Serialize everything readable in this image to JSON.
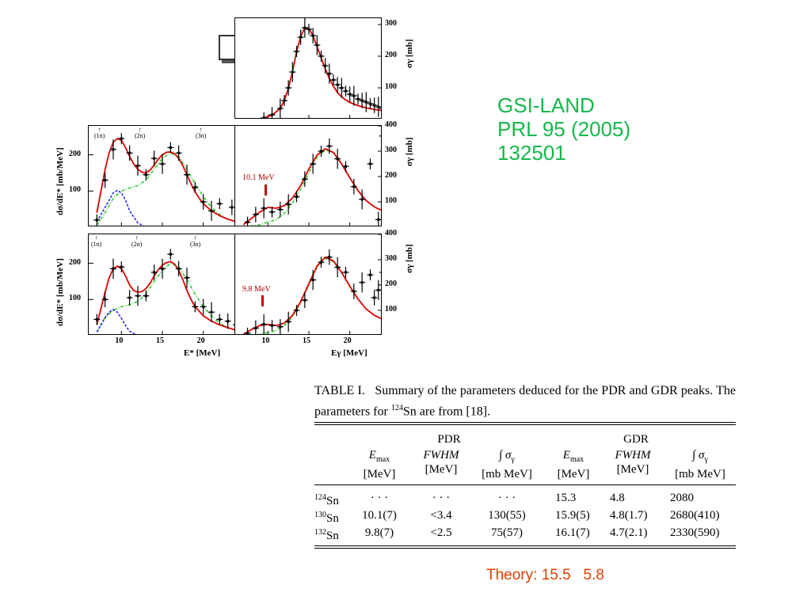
{
  "citation": {
    "line1": "GSI-LAND",
    "line2": "PRL 95 (2005)",
    "line3": "132501"
  },
  "theory": "Theory: 15.5   5.8",
  "figure": {
    "isotopes": [
      {
        "mass": "124",
        "symbol": "Sn",
        "color": "#0000d0"
      },
      {
        "mass": "130",
        "symbol": "Sn",
        "color": "#d000d0"
      },
      {
        "mass": "132",
        "symbol": "Sn",
        "color": "#d000d0"
      }
    ],
    "channels": [
      "(1n)",
      "(2n)",
      "(3n)"
    ],
    "annotations": {
      "sn130": "10.1 MeV",
      "sn132": "9.8 MeV"
    },
    "left_ylabel": "dσ/dE* [mb/MeV]",
    "right_ylabel": "σγ [mb]",
    "left_xlabel": "E* [MeV]",
    "right_xlabel": "Eγ [MeV]",
    "colors": {
      "fit": "#e00000",
      "gdr": "#33cc33",
      "pdr": "#2222ee",
      "data": "#000000",
      "annotation": "#c00000"
    }
  },
  "chart_data": [
    {
      "type": "scatter",
      "panel": "124Sn right",
      "xlabel": "Eγ [MeV]",
      "ylabel": "σγ [mb]",
      "xlim": [
        6,
        24
      ],
      "ylim": [
        0,
        320
      ],
      "yticks": [
        100,
        200,
        300
      ],
      "series": [
        {
          "name": "",
          "kind": "data",
          "x": [
            9.5,
            10.5,
            11.5,
            12.0,
            12.5,
            13.0,
            13.5,
            14.0,
            14.5,
            15.0,
            15.5,
            16.0,
            16.5,
            17.0,
            17.5,
            18.0,
            18.5,
            19.0,
            19.5,
            20.0,
            20.5,
            21.0,
            21.5,
            22.0,
            22.5,
            23.0,
            23.5,
            24.0
          ],
          "y": [
            5,
            15,
            35,
            60,
            100,
            150,
            215,
            260,
            290,
            285,
            265,
            235,
            200,
            170,
            145,
            125,
            110,
            100,
            90,
            80,
            75,
            65,
            60,
            55,
            50,
            45,
            40,
            35
          ]
        },
        {
          "name": "",
          "kind": "fit",
          "x": [
            9.5,
            10.5,
            11.5,
            12.0,
            12.5,
            13.0,
            13.5,
            14.0,
            14.5,
            15.0,
            15.5,
            16.0,
            16.5,
            17.0,
            17.5,
            18.0,
            18.5,
            19.0,
            19.5,
            20.0,
            21.0,
            22.0,
            23.0,
            24.0
          ],
          "y": [
            5,
            14,
            35,
            60,
            100,
            150,
            215,
            262,
            290,
            287,
            265,
            230,
            195,
            160,
            130,
            105,
            85,
            72,
            62,
            54,
            44,
            37,
            32,
            28
          ]
        }
      ]
    },
    {
      "type": "scatter",
      "panel": "130Sn left",
      "xlabel": "E* [MeV]",
      "ylabel": "dσ/dE* [mb/MeV]",
      "xlim": [
        6,
        24
      ],
      "ylim": [
        0,
        280
      ],
      "yticks": [
        100,
        200
      ],
      "series": [
        {
          "name": "",
          "kind": "data",
          "x": [
            7.0,
            8.0,
            9.0,
            10.0,
            11.0,
            12.0,
            13.0,
            14.0,
            15.0,
            16.0,
            17.0,
            18.0,
            19.0,
            20.0,
            21.0,
            22.0,
            23.5
          ],
          "y": [
            20,
            130,
            215,
            245,
            205,
            170,
            145,
            190,
            175,
            220,
            205,
            145,
            110,
            70,
            45,
            65,
            55
          ]
        },
        {
          "name": "",
          "kind": "fit",
          "x": [
            7.0,
            7.5,
            8.0,
            8.5,
            9.0,
            9.5,
            10.0,
            10.5,
            11.0,
            11.5,
            12.0,
            12.5,
            13.0,
            13.5,
            14.0,
            14.5,
            15.0,
            15.5,
            16.0,
            16.5,
            17.0,
            17.5,
            18.0,
            18.5,
            19.0,
            19.5,
            20.0,
            21.0,
            22.0,
            23.0,
            24.0
          ],
          "y": [
            40,
            100,
            160,
            205,
            235,
            245,
            240,
            220,
            195,
            175,
            160,
            152,
            150,
            158,
            172,
            188,
            200,
            207,
            208,
            203,
            190,
            170,
            145,
            120,
            98,
            80,
            65,
            45,
            32,
            22,
            15
          ]
        },
        {
          "name": "",
          "kind": "gdr",
          "x": [
            7.0,
            8.0,
            9.0,
            10.0,
            11.0,
            12.0,
            13.0,
            14.0,
            15.0,
            16.0,
            17.0,
            18.0,
            19.0,
            20.0,
            21.0,
            22.0,
            23.0,
            24.0
          ],
          "y": [
            5,
            40,
            80,
            100,
            108,
            115,
            130,
            160,
            190,
            205,
            195,
            160,
            120,
            85,
            55,
            35,
            22,
            15
          ]
        },
        {
          "name": "",
          "kind": "pdr",
          "x": [
            7.0,
            8.0,
            9.0,
            9.5,
            10.0,
            10.5,
            11.0,
            12.0,
            13.0
          ],
          "y": [
            15,
            55,
            95,
            102,
            95,
            75,
            45,
            12,
            0
          ]
        }
      ]
    },
    {
      "type": "scatter",
      "panel": "130Sn right",
      "xlabel": "Eγ [MeV]",
      "ylabel": "σγ [mb]",
      "xlim": [
        6,
        24
      ],
      "ylim": [
        0,
        400
      ],
      "yticks": [
        100,
        200,
        300,
        400
      ],
      "annotation": {
        "label": "10.1 MeV",
        "x": 10.1
      },
      "series": [
        {
          "name": "",
          "kind": "data",
          "x": [
            7.5,
            8.5,
            9.5,
            10.5,
            11.5,
            12.5,
            13.5,
            14.5,
            15.5,
            16.5,
            17.5,
            18.5,
            19.5,
            20.5,
            21.5,
            22.5,
            23.5,
            24.0
          ],
          "y": [
            20,
            50,
            75,
            60,
            70,
            90,
            120,
            190,
            250,
            300,
            320,
            270,
            240,
            160,
            110,
            250,
            30,
            360
          ]
        },
        {
          "name": "",
          "kind": "fit",
          "x": [
            7.0,
            8.0,
            9.0,
            10.0,
            11.0,
            12.0,
            13.0,
            14.0,
            15.0,
            16.0,
            17.0,
            18.0,
            19.0,
            20.0,
            21.0,
            22.0,
            23.0,
            24.0
          ],
          "y": [
            10,
            35,
            60,
            78,
            75,
            85,
            115,
            165,
            230,
            285,
            310,
            295,
            250,
            195,
            145,
            105,
            80,
            65
          ]
        },
        {
          "name": "",
          "kind": "gdr",
          "x": [
            7.0,
            9.0,
            11.0,
            12.0,
            13.0,
            14.0,
            15.0,
            16.0,
            17.0,
            18.0,
            19.0,
            20.0,
            21.0,
            22.0,
            23.0,
            24.0
          ],
          "y": [
            0,
            10,
            30,
            55,
            95,
            150,
            215,
            275,
            305,
            295,
            250,
            195,
            145,
            105,
            80,
            65
          ]
        }
      ]
    },
    {
      "type": "scatter",
      "panel": "132Sn left",
      "xlabel": "E* [MeV]",
      "ylabel": "dσ/dE* [mb/MeV]",
      "xlim": [
        6,
        24
      ],
      "ylim": [
        0,
        280
      ],
      "yticks": [
        100,
        200
      ],
      "series": [
        {
          "name": "",
          "kind": "data",
          "x": [
            7.0,
            8.0,
            9.0,
            10.0,
            11.0,
            12.0,
            13.0,
            14.0,
            15.0,
            16.0,
            17.0,
            18.0,
            19.0,
            20.0,
            21.0,
            22.0,
            23.0,
            24.0
          ],
          "y": [
            45,
            100,
            185,
            190,
            105,
            110,
            110,
            175,
            185,
            225,
            185,
            160,
            80,
            80,
            65,
            45,
            40,
            30
          ]
        },
        {
          "name": "",
          "kind": "fit",
          "x": [
            7.0,
            7.5,
            8.0,
            8.5,
            9.0,
            9.5,
            10.0,
            10.5,
            11.0,
            11.5,
            12.0,
            12.5,
            13.0,
            13.5,
            14.0,
            14.5,
            15.0,
            15.5,
            16.0,
            16.5,
            17.0,
            17.5,
            18.0,
            18.5,
            19.0,
            20.0,
            21.0,
            22.0,
            23.0,
            24.0
          ],
          "y": [
            30,
            75,
            120,
            160,
            185,
            192,
            185,
            165,
            140,
            125,
            120,
            122,
            130,
            145,
            165,
            182,
            195,
            202,
            205,
            198,
            180,
            155,
            125,
            100,
            80,
            55,
            40,
            30,
            22,
            15
          ]
        },
        {
          "name": "",
          "kind": "gdr",
          "x": [
            7.0,
            8.0,
            9.0,
            10.0,
            11.0,
            12.0,
            13.0,
            14.0,
            15.0,
            16.0,
            17.0,
            18.0,
            19.0,
            20.0,
            21.0,
            22.0,
            23.0,
            24.0
          ],
          "y": [
            10,
            50,
            70,
            80,
            85,
            95,
            115,
            150,
            180,
            200,
            190,
            155,
            115,
            80,
            55,
            35,
            22,
            15
          ]
        },
        {
          "name": "",
          "kind": "pdr",
          "x": [
            7.0,
            8.0,
            8.5,
            9.0,
            9.5,
            10.0,
            10.5,
            11.0,
            12.0
          ],
          "y": [
            10,
            50,
            65,
            72,
            65,
            48,
            28,
            12,
            0
          ]
        }
      ]
    },
    {
      "type": "scatter",
      "panel": "132Sn right",
      "xlabel": "Eγ [MeV]",
      "ylabel": "σγ [mb]",
      "xlim": [
        6,
        24
      ],
      "ylim": [
        0,
        400
      ],
      "yticks": [
        100,
        200,
        300,
        400
      ],
      "annotation": {
        "label": "9.8 MeV",
        "x": 9.8
      },
      "series": [
        {
          "name": "",
          "kind": "data",
          "x": [
            7.5,
            8.5,
            9.5,
            10.5,
            11.5,
            12.5,
            13.5,
            14.5,
            15.5,
            16.5,
            17.5,
            18.5,
            19.5,
            20.5,
            21.5,
            22.5,
            23.0,
            23.5,
            24.0
          ],
          "y": [
            10,
            30,
            45,
            40,
            35,
            55,
            100,
            140,
            220,
            290,
            310,
            270,
            250,
            175,
            210,
            240,
            150,
            180,
            250
          ]
        },
        {
          "name": "",
          "kind": "fit",
          "x": [
            7.0,
            8.0,
            9.0,
            10.0,
            11.0,
            12.0,
            13.0,
            14.0,
            15.0,
            16.0,
            17.0,
            18.0,
            19.0,
            20.0,
            21.0,
            22.0,
            23.0,
            24.0
          ],
          "y": [
            5,
            25,
            40,
            45,
            40,
            50,
            80,
            135,
            205,
            275,
            310,
            295,
            250,
            195,
            145,
            105,
            80,
            65
          ]
        },
        {
          "name": "",
          "kind": "gdr",
          "x": [
            7.0,
            9.0,
            11.0,
            12.0,
            13.0,
            14.0,
            15.0,
            16.0,
            17.0,
            18.0,
            19.0,
            20.0,
            21.0,
            22.0,
            23.0,
            24.0
          ],
          "y": [
            0,
            5,
            20,
            40,
            75,
            130,
            200,
            270,
            305,
            292,
            250,
            195,
            145,
            105,
            80,
            65
          ]
        }
      ]
    }
  ],
  "table": {
    "caption_prefix": "TABLE I.",
    "caption_text": "Summary of the parameters deduced for the PDR and GDR peaks. The parameters for",
    "caption_mass": "124",
    "caption_symbol": "Sn",
    "caption_suffix": "are from [18].",
    "groups": [
      "PDR",
      "GDR"
    ],
    "headers": [
      {
        "main": "E",
        "sub": "max",
        "unit": "[MeV]"
      },
      {
        "main": "FWHM",
        "sub": "",
        "unit": "[MeV]"
      },
      {
        "main": "∫ σ",
        "sub": "γ",
        "unit": "[mb MeV]"
      },
      {
        "main": "E",
        "sub": "max",
        "unit": "[MeV]"
      },
      {
        "main": "FWHM",
        "sub": "",
        "unit": "[MeV]"
      },
      {
        "main": "∫ σ",
        "sub": "γ",
        "unit": "[mb MeV]"
      }
    ],
    "rows": [
      {
        "mass": "124",
        "symbol": "Sn",
        "cells": [
          "· · ·",
          "· · ·",
          "· · ·",
          "15.3",
          "4.8",
          "2080"
        ]
      },
      {
        "mass": "130",
        "symbol": "Sn",
        "cells": [
          "10.1(7)",
          "<3.4",
          "130(55)",
          "15.9(5)",
          "4.8(1.7)",
          "2680(410)"
        ]
      },
      {
        "mass": "132",
        "symbol": "Sn",
        "cells": [
          "9.8(7)",
          "<2.5",
          "75(57)",
          "16.1(7)",
          "4.7(2.1)",
          "2330(590)"
        ]
      }
    ]
  }
}
